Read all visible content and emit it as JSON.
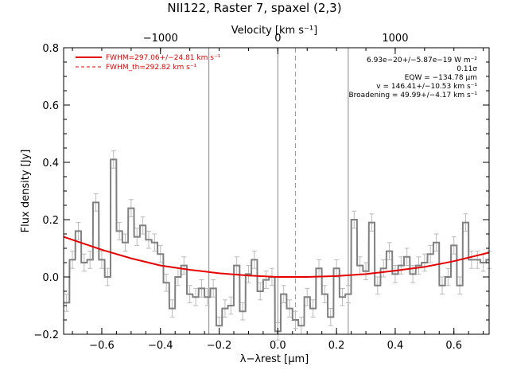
{
  "chart_data": {
    "type": "line",
    "title": "NII122, Raster 7, spaxel (2,3)",
    "xlabel": "λ−λrest [μm]",
    "ylabel": "Flux density [Jy]",
    "top_axis_label": "Velocity [km s⁻¹]",
    "xlim": [
      -0.73,
      0.72
    ],
    "ylim": [
      -0.2,
      0.8
    ],
    "xticks": [
      -0.6,
      -0.4,
      -0.2,
      0.0,
      0.2,
      0.4,
      0.6
    ],
    "xtick_labels": [
      "−0.6",
      "−0.4",
      "−0.2",
      "0.0",
      "0.2",
      "0.4",
      "0.6"
    ],
    "yticks": [
      -0.2,
      0.0,
      0.2,
      0.4,
      0.6,
      0.8
    ],
    "ytick_labels": [
      "−0.2",
      "0.0",
      "0.2",
      "0.4",
      "0.6",
      "0.8"
    ],
    "top_ticks": [
      -1000,
      0,
      1000
    ],
    "top_tick_labels": [
      "−1000",
      "0",
      "1000"
    ],
    "top_ticks_wavelength": [
      -0.4,
      0.0,
      0.4
    ],
    "vertical_lines_solid": [
      -0.235,
      0.0,
      0.24
    ],
    "vertical_line_dashed": 0.06,
    "legend": [
      {
        "label": "FWHM=297.06+/−24.81 km s⁻¹",
        "style": "solid",
        "color": "#e60000"
      },
      {
        "label": "FWHM_th=292.82 km s⁻¹",
        "style": "dashed",
        "color": "#e60000"
      }
    ],
    "annotations": [
      "6.93e−20+/−5.87e−19 W m⁻²",
      "0.11σ",
      "EQW = −134.78 μm",
      "v = 146.41+/−10.53 km s⁻¹",
      "Broadening = 49.99+/−4.17 km s⁻¹"
    ],
    "series": [
      {
        "name": "data",
        "color": "#808080",
        "style": "steps",
        "bin_width": 0.0195,
        "x": [
          -0.72,
          -0.7,
          -0.68,
          -0.66,
          -0.64,
          -0.62,
          -0.6,
          -0.58,
          -0.56,
          -0.54,
          -0.52,
          -0.5,
          -0.48,
          -0.46,
          -0.44,
          -0.42,
          -0.4,
          -0.38,
          -0.36,
          -0.34,
          -0.32,
          -0.3,
          -0.28,
          -0.26,
          -0.24,
          -0.22,
          -0.2,
          -0.18,
          -0.16,
          -0.14,
          -0.12,
          -0.1,
          -0.08,
          -0.06,
          -0.04,
          -0.02,
          0.0,
          0.02,
          0.04,
          0.06,
          0.08,
          0.1,
          0.12,
          0.14,
          0.16,
          0.18,
          0.2,
          0.22,
          0.24,
          0.26,
          0.28,
          0.3,
          0.32,
          0.34,
          0.36,
          0.38,
          0.4,
          0.42,
          0.44,
          0.46,
          0.48,
          0.5,
          0.52,
          0.54,
          0.56,
          0.58,
          0.6,
          0.62,
          0.64,
          0.66,
          0.68,
          0.7,
          0.72
        ],
        "y": [
          -0.09,
          0.06,
          0.16,
          0.05,
          0.06,
          0.26,
          0.06,
          0.0,
          0.41,
          0.16,
          0.12,
          0.24,
          0.14,
          0.18,
          0.13,
          0.12,
          0.08,
          -0.02,
          -0.11,
          0.0,
          0.04,
          -0.06,
          -0.07,
          -0.04,
          -0.07,
          -0.04,
          -0.17,
          -0.11,
          -0.1,
          0.04,
          -0.12,
          0.01,
          0.06,
          -0.05,
          -0.01,
          0.0,
          -0.19,
          -0.06,
          -0.11,
          -0.15,
          -0.17,
          -0.07,
          -0.11,
          0.03,
          -0.06,
          -0.14,
          0.03,
          -0.07,
          -0.06,
          0.2,
          0.04,
          0.02,
          0.19,
          -0.03,
          0.03,
          0.09,
          0.01,
          0.04,
          0.07,
          0.01,
          0.04,
          0.05,
          0.08,
          0.12,
          -0.03,
          0.0,
          0.11,
          -0.03,
          0.19,
          0.06,
          0.06,
          0.05,
          0.06
        ],
        "err": 0.03
      },
      {
        "name": "fit",
        "color": "#e60000",
        "style": "line",
        "x": [
          -0.73,
          -0.6,
          -0.5,
          -0.4,
          -0.3,
          -0.2,
          -0.1,
          0.0,
          0.1,
          0.2,
          0.3,
          0.4,
          0.5,
          0.6,
          0.72
        ],
        "y": [
          0.14,
          0.095,
          0.065,
          0.04,
          0.025,
          0.013,
          0.005,
          0.0,
          0.0,
          0.003,
          0.01,
          0.022,
          0.035,
          0.055,
          0.085
        ]
      }
    ]
  }
}
